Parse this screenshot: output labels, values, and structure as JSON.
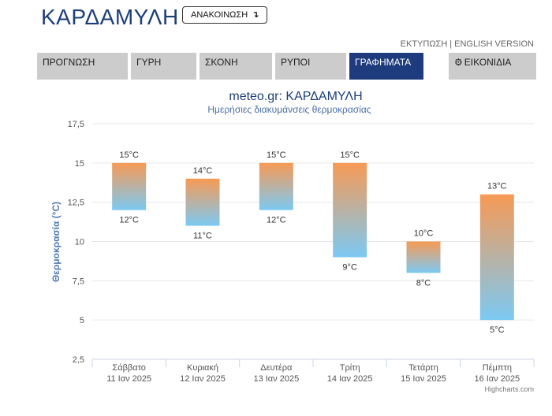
{
  "header": {
    "title": "ΚΑΡΔΑΜΥΛΗ",
    "announce_label": "ΑΝΑΚΟΙΝΩΣΗ",
    "announce_icon": "arrow-return-icon",
    "print_link": "ΕΚΤΥΠΩΣΗ",
    "link_separator": "|",
    "english_link": "ENGLISH VERSION"
  },
  "tabs": [
    {
      "label": "ΠΡΟΓΝΩΣΗ",
      "active": false
    },
    {
      "label": "ΓΥΡΗ",
      "active": false
    },
    {
      "label": "ΣΚΟΝΗ",
      "active": false
    },
    {
      "label": "ΡΥΠΟΙ",
      "active": false
    },
    {
      "label": "ΓΡΑΦΗΜΑΤΑ",
      "active": true
    },
    {
      "label": "ΕΙΚΟΝΙΔΙΑ",
      "active": false,
      "icon": "gear-icon"
    }
  ],
  "credit": "Highcharts.com",
  "chart_data": {
    "type": "columnrange",
    "title": "meteo.gr: ΚΑΡΔΑΜΥΛΗ",
    "subtitle": "Ημερήσιες διακυμάνσεις θερμοκρασίας",
    "ylabel": "Θερμοκρασία (°C)",
    "ylim": [
      2.5,
      17.5
    ],
    "yticks": [
      "2,5",
      "5",
      "7,5",
      "10",
      "12,5",
      "15",
      "17,5"
    ],
    "grid": true,
    "unit": "°C",
    "categories": [
      [
        "Σάββατο",
        "11 Ιαν 2025"
      ],
      [
        "Κυριακή",
        "12 Ιαν 2025"
      ],
      [
        "Δευτέρα",
        "13 Ιαν 2025"
      ],
      [
        "Τρίτη",
        "14 Ιαν 2025"
      ],
      [
        "Τετάρτη",
        "15 Ιαν 2025"
      ],
      [
        "Πέμπτη",
        "16 Ιαν 2025"
      ]
    ],
    "low": [
      12,
      11,
      12,
      9,
      8,
      5
    ],
    "high": [
      15,
      14,
      15,
      15,
      10,
      13
    ],
    "colors": {
      "high": "#f79a55",
      "low": "#7cc9f3",
      "axis_title": "#4f79b6",
      "title": "#1d3f7a",
      "subtitle": "#4a6fa8"
    }
  }
}
